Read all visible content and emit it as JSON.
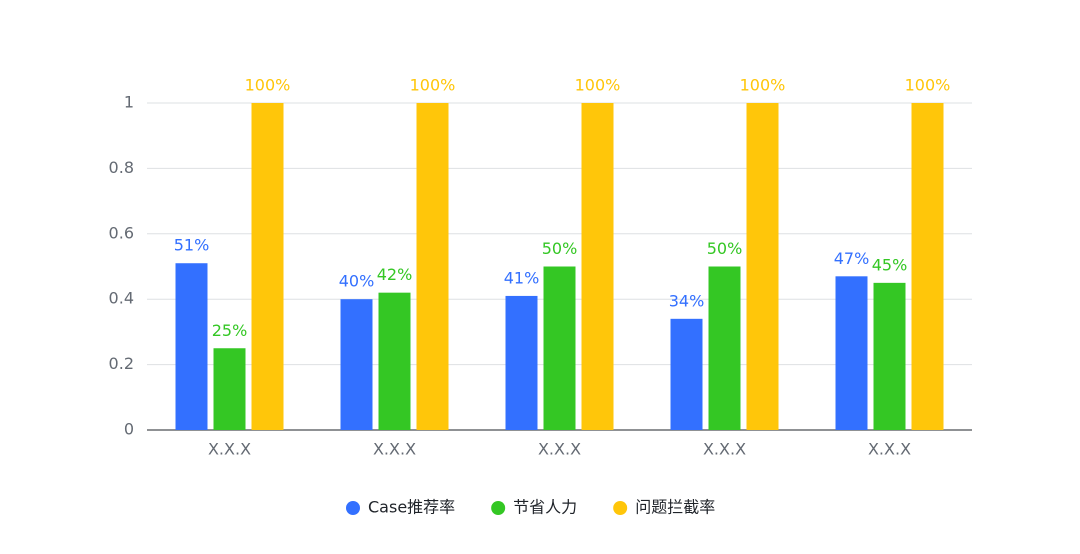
{
  "chart_data": {
    "type": "bar",
    "categories": [
      "X.X.X",
      "X.X.X",
      "X.X.X",
      "X.X.X",
      "X.X.X"
    ],
    "series": [
      {
        "name": "Case推荐率",
        "color": "#3370ff",
        "values": [
          0.51,
          0.4,
          0.41,
          0.34,
          0.47
        ],
        "value_labels": [
          "51%",
          "40%",
          "41%",
          "34%",
          "47%"
        ]
      },
      {
        "name": "节省人力",
        "color": "#34c724",
        "values": [
          0.25,
          0.42,
          0.5,
          0.5,
          0.45
        ],
        "value_labels": [
          "25%",
          "42%",
          "50%",
          "50%",
          "45%"
        ]
      },
      {
        "name": "问题拦截率",
        "color": "#ffc60a",
        "values": [
          1,
          1,
          1,
          1,
          1
        ],
        "value_labels": [
          "100%",
          "100%",
          "100%",
          "100%",
          "100%"
        ]
      }
    ],
    "ylim": [
      0,
      1
    ],
    "yticks": [
      0,
      0.2,
      0.4,
      0.6,
      0.8,
      1
    ],
    "grid": true,
    "legend": "bottom"
  }
}
